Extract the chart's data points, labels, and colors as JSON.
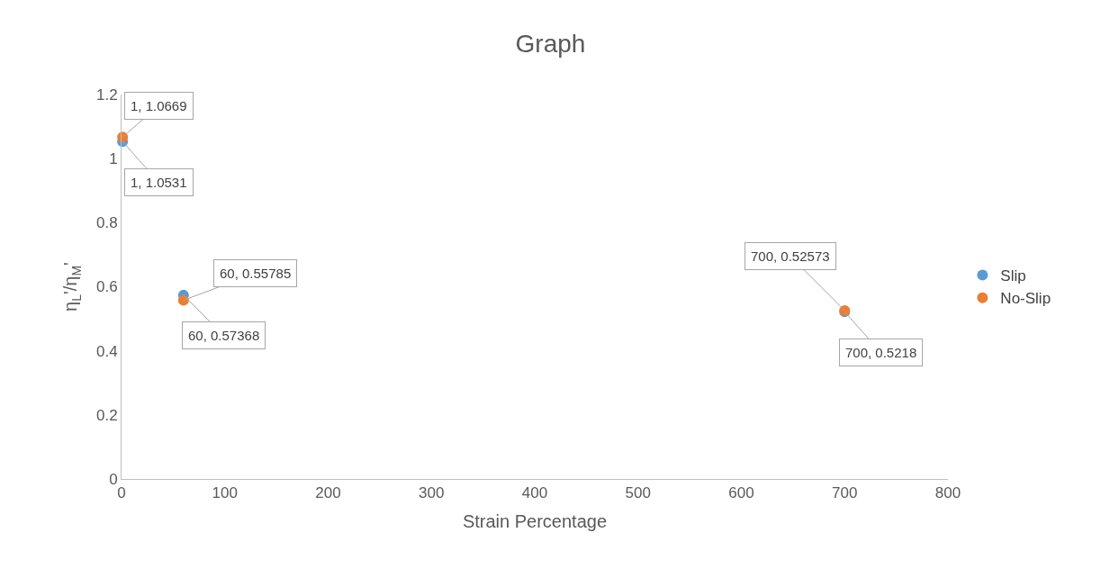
{
  "chart_data": {
    "type": "scatter",
    "title": "Graph",
    "xlabel": "Strain Percentage",
    "ylabel": "η$_{L}$'/η$_{M}$'",
    "x": [
      1,
      60,
      700
    ],
    "series": [
      {
        "name": "Slip",
        "color": "#5b9bd5",
        "values": [
          1.0531,
          0.57368,
          0.5218
        ],
        "value_labels": [
          "1, 1.0531",
          "60, 0.57368",
          "700, 0.5218"
        ]
      },
      {
        "name": "No-Slip",
        "color": "#ed7d31",
        "values": [
          1.0669,
          0.55785,
          0.52573
        ],
        "value_labels": [
          "1, 1.0669",
          "60, 0.55785",
          "700, 0.52573"
        ]
      }
    ],
    "xlim": [
      0,
      800
    ],
    "xticks": [
      0,
      100,
      200,
      300,
      400,
      500,
      600,
      700,
      800
    ],
    "ylim": [
      0,
      1.2
    ],
    "yticks": [
      0,
      0.2,
      0.4,
      0.6,
      0.8,
      1,
      1.2
    ],
    "grid": false,
    "legend": "right",
    "marker": "circle"
  }
}
